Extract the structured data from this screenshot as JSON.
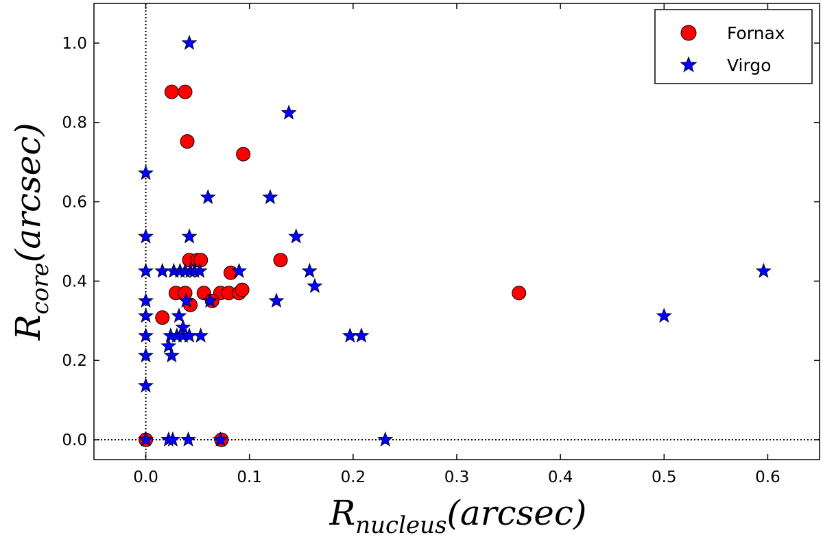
{
  "chart_data": {
    "type": "scatter",
    "title": "",
    "xlabel": {
      "base": "R",
      "sub": "nucleus",
      "unit": "(arcsec)"
    },
    "ylabel": {
      "base": "R",
      "sub": "core",
      "unit": "(arcsec)"
    },
    "xlim": [
      -0.05,
      0.65
    ],
    "ylim": [
      -0.05,
      1.1
    ],
    "xticks": [
      0.0,
      0.1,
      0.2,
      0.3,
      0.4,
      0.5,
      0.6
    ],
    "xtick_labels": [
      "0.0",
      "0.1",
      "0.2",
      "0.3",
      "0.4",
      "0.5",
      "0.6"
    ],
    "yticks": [
      0.0,
      0.2,
      0.4,
      0.6,
      0.8,
      1.0
    ],
    "ytick_labels": [
      "0.0",
      "0.2",
      "0.4",
      "0.6",
      "0.8",
      "1.0"
    ],
    "grid": false,
    "reference_lines": {
      "x": 0.0,
      "y": 0.0,
      "style": "dotted"
    },
    "legend_position": "top-right",
    "series": [
      {
        "name": "Fornax",
        "marker": "circle",
        "color": "#ff0000",
        "points": [
          [
            0.025,
            0.877
          ],
          [
            0.038,
            0.877
          ],
          [
            0.04,
            0.752
          ],
          [
            0.094,
            0.72
          ],
          [
            0.042,
            0.453
          ],
          [
            0.05,
            0.453
          ],
          [
            0.053,
            0.453
          ],
          [
            0.13,
            0.453
          ],
          [
            0.082,
            0.421
          ],
          [
            0.029,
            0.37
          ],
          [
            0.038,
            0.37
          ],
          [
            0.056,
            0.37
          ],
          [
            0.072,
            0.37
          ],
          [
            0.08,
            0.37
          ],
          [
            0.09,
            0.37
          ],
          [
            0.093,
            0.378
          ],
          [
            0.043,
            0.34
          ],
          [
            0.064,
            0.35
          ],
          [
            0.016,
            0.308
          ],
          [
            0.36,
            0.37
          ],
          [
            0.0,
            0.0
          ],
          [
            0.073,
            0.0
          ]
        ]
      },
      {
        "name": "Virgo",
        "marker": "star",
        "color": "#0000ff",
        "points": [
          [
            0.042,
            1.0
          ],
          [
            0.138,
            0.824
          ],
          [
            0.0,
            0.672
          ],
          [
            0.06,
            0.611
          ],
          [
            0.12,
            0.611
          ],
          [
            0.0,
            0.512
          ],
          [
            0.042,
            0.512
          ],
          [
            0.145,
            0.512
          ],
          [
            0.0,
            0.425
          ],
          [
            0.016,
            0.425
          ],
          [
            0.027,
            0.425
          ],
          [
            0.033,
            0.425
          ],
          [
            0.038,
            0.425
          ],
          [
            0.043,
            0.425
          ],
          [
            0.047,
            0.425
          ],
          [
            0.052,
            0.425
          ],
          [
            0.09,
            0.425
          ],
          [
            0.158,
            0.425
          ],
          [
            0.596,
            0.425
          ],
          [
            0.163,
            0.387
          ],
          [
            0.0,
            0.35
          ],
          [
            0.039,
            0.35
          ],
          [
            0.062,
            0.35
          ],
          [
            0.126,
            0.35
          ],
          [
            0.0,
            0.312
          ],
          [
            0.032,
            0.312
          ],
          [
            0.5,
            0.312
          ],
          [
            0.036,
            0.283
          ],
          [
            0.0,
            0.262
          ],
          [
            0.024,
            0.262
          ],
          [
            0.03,
            0.262
          ],
          [
            0.036,
            0.262
          ],
          [
            0.042,
            0.262
          ],
          [
            0.053,
            0.262
          ],
          [
            0.197,
            0.262
          ],
          [
            0.208,
            0.262
          ],
          [
            0.022,
            0.236
          ],
          [
            0.0,
            0.212
          ],
          [
            0.025,
            0.212
          ],
          [
            0.0,
            0.136
          ],
          [
            0.0,
            0.0
          ],
          [
            0.022,
            0.0
          ],
          [
            0.026,
            0.0
          ],
          [
            0.041,
            0.0
          ],
          [
            0.072,
            0.0
          ],
          [
            0.231,
            0.0
          ]
        ]
      }
    ]
  }
}
